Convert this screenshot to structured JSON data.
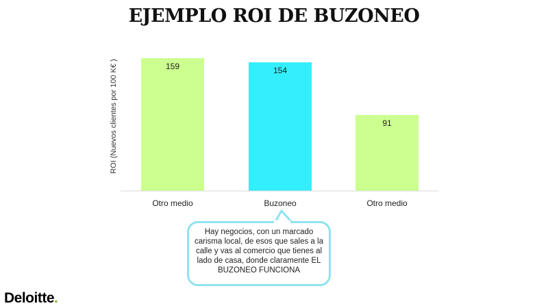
{
  "title": "EJEMPLO ROI DE BUZONEO",
  "callout_text": "Hay negocios, con un marcado carisma local, de esos que sales a la calle y vas al comercio que tienes al lado de casa, donde claramente EL BUZONEO FUNCIONA",
  "logo": {
    "name": "Deloitte",
    "dot": "."
  },
  "colors": {
    "green": "#ccff8f",
    "cyan": "#33eefc",
    "callout_border": "#8fe3f0",
    "logo_dot": "#86bc25"
  },
  "chart_data": {
    "type": "bar",
    "categories": [
      "Otro medio",
      "Buzoneo",
      "Otro medio"
    ],
    "values": [
      159,
      154,
      91
    ],
    "bar_colors": [
      "#ccff8f",
      "#33eefc",
      "#ccff8f"
    ],
    "ylabel": "ROI (Nuevos clientes por 100 K€ )",
    "xlabel": "",
    "ylim": [
      0,
      165
    ],
    "grid": false,
    "data_labels": [
      "159",
      "154",
      "91"
    ]
  }
}
